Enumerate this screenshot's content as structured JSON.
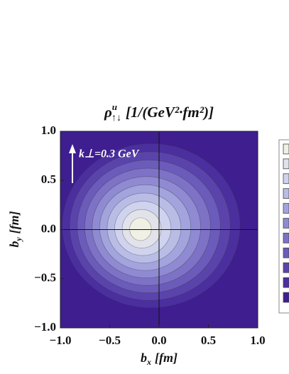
{
  "chart_data": {
    "type": "contour",
    "title": {
      "symbol": "ρ",
      "superscript": "u",
      "subscript": "↑↓",
      "units": "[1/(GeV²·fm²)]"
    },
    "x_label": {
      "base": "b",
      "subscript": "x",
      "units": "[fm]"
    },
    "y_label": {
      "base": "b",
      "subscript": "y",
      "units": "[fm]"
    },
    "annotation": "k⊥=0.3 GeV",
    "xlim": [
      -1,
      1
    ],
    "ylim": [
      -1,
      1
    ],
    "xticks": [
      {
        "value": -1,
        "label": "−1.0"
      },
      {
        "value": -0.5,
        "label": "−0.5"
      },
      {
        "value": 0,
        "label": "0.0"
      },
      0.5,
      {
        "value": 1,
        "label": "1.0"
      }
    ],
    "yticks": [
      {
        "value": -1,
        "label": "−1.0"
      },
      {
        "value": -0.5,
        "label": "−0.5"
      },
      {
        "value": 0,
        "label": "0.0"
      },
      0.5,
      {
        "value": 1,
        "label": "1.0"
      }
    ],
    "level_colors": [
      "#3f1e90",
      "#4b2f9f",
      "#5a44ab",
      "#6b5bba",
      "#7d72c6",
      "#8f8ad2",
      "#a3a4dd",
      "#b9bde6",
      "#cfd3ee",
      "#e2e3ea",
      "#f1f0e4"
    ]
  }
}
